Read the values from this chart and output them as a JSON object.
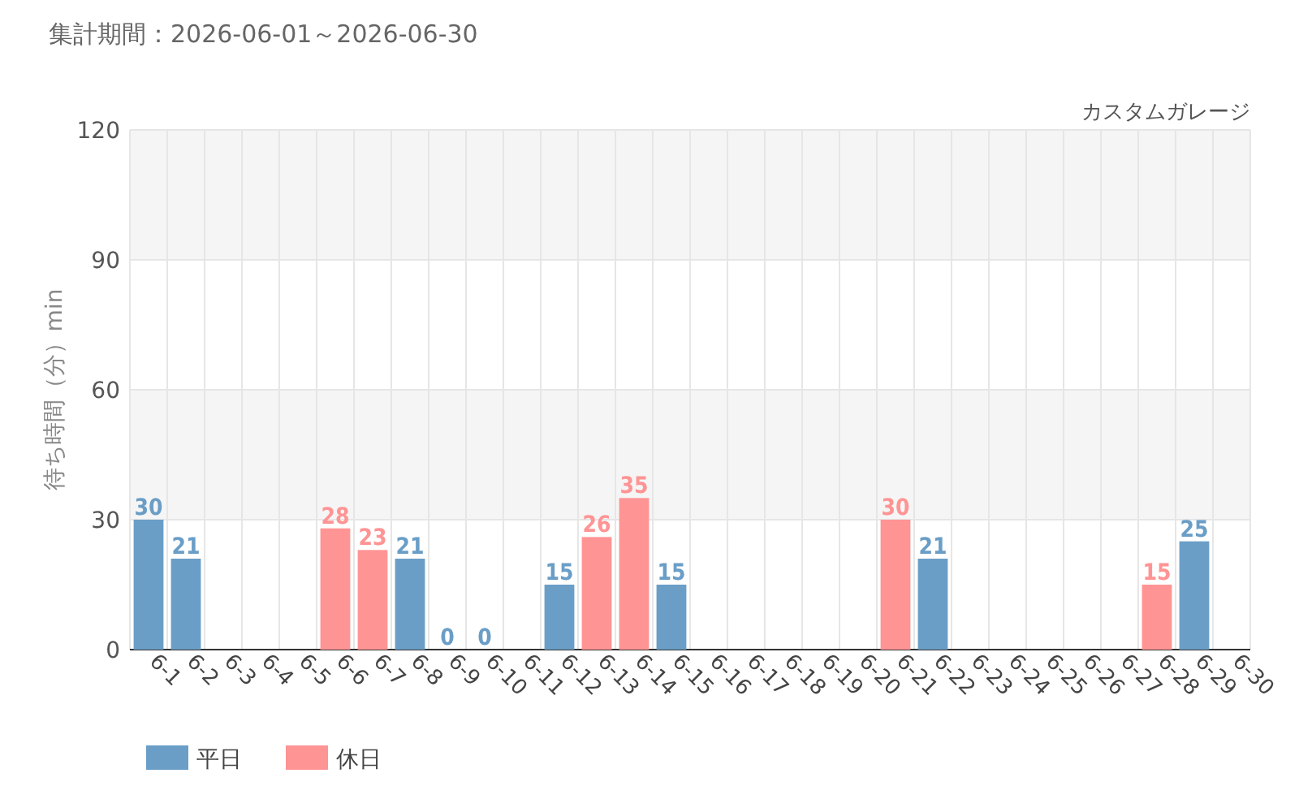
{
  "chart_data": {
    "type": "bar",
    "title": "集計期間：2026-06-01～2026-06-30",
    "subtitle": "カスタムガレージ",
    "ylabel": "待ち時間（分）min",
    "categories": [
      "6-1",
      "6-2",
      "6-3",
      "6-4",
      "6-5",
      "6-6",
      "6-7",
      "6-8",
      "6-9",
      "6-10",
      "6-11",
      "6-12",
      "6-13",
      "6-14",
      "6-15",
      "6-16",
      "6-17",
      "6-18",
      "6-19",
      "6-20",
      "6-21",
      "6-22",
      "6-23",
      "6-24",
      "6-25",
      "6-26",
      "6-27",
      "6-28",
      "6-29",
      "6-30"
    ],
    "series": [
      {
        "name": "平日",
        "color": "#6a9ec7",
        "values": [
          30,
          21,
          null,
          null,
          null,
          null,
          null,
          21,
          0,
          0,
          null,
          15,
          null,
          null,
          15,
          null,
          null,
          null,
          null,
          null,
          null,
          21,
          null,
          null,
          null,
          null,
          null,
          null,
          25,
          null
        ]
      },
      {
        "name": "休日",
        "color": "#ff9494",
        "values": [
          null,
          null,
          null,
          null,
          null,
          28,
          23,
          null,
          null,
          null,
          null,
          null,
          26,
          35,
          null,
          null,
          null,
          null,
          null,
          null,
          30,
          null,
          null,
          null,
          null,
          null,
          null,
          15,
          null,
          null
        ]
      }
    ],
    "ylim": [
      0,
      120
    ],
    "yticks": [
      0,
      30,
      60,
      90,
      120
    ],
    "grid": true,
    "data_labels": true,
    "legend": "bottom left"
  }
}
